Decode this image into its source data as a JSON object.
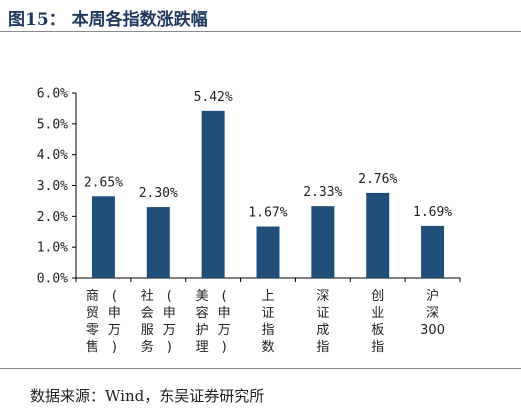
{
  "figure": {
    "title": "图15： 本周各指数涨跌幅",
    "source": "数据来源：Wind，东吴证券研究所"
  },
  "chart_data": {
    "type": "bar",
    "categories": [
      "商贸零售(申万)",
      "社会服务(申万)",
      "美容护理(申万)",
      "上证指数",
      "深证成指",
      "创业板指",
      "沪深300"
    ],
    "category_columns": [
      [
        "商贸零售",
        "(申万)"
      ],
      [
        "社会服务",
        "(申万)"
      ],
      [
        "美容护理",
        "(申万)"
      ],
      [
        "上证指数"
      ],
      [
        "深证成指"
      ],
      [
        "创业板指"
      ],
      [
        "沪深300"
      ]
    ],
    "values": [
      2.65,
      2.3,
      5.42,
      1.67,
      2.33,
      2.76,
      1.69
    ],
    "data_labels": [
      "2.65%",
      "2.30%",
      "5.42%",
      "1.67%",
      "2.33%",
      "2.76%",
      "1.69%"
    ],
    "y_ticks": [
      0,
      1,
      2,
      3,
      4,
      5,
      6
    ],
    "y_tick_labels": [
      "0.0%",
      "1.0%",
      "2.0%",
      "3.0%",
      "4.0%",
      "5.0%",
      "6.0%"
    ],
    "ylim": [
      0,
      6
    ],
    "grid": false,
    "legend": "none",
    "bar_color": "#1F4E79"
  }
}
